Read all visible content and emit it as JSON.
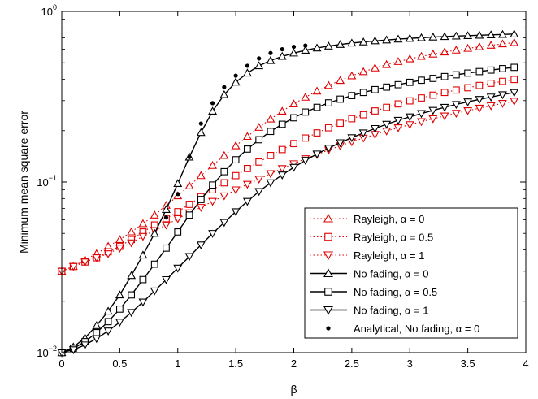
{
  "chart_data": {
    "type": "line",
    "title": "",
    "xlabel": "β",
    "ylabel": "Minimum mean square error",
    "xlim": [
      0,
      4
    ],
    "ylim": [
      0.01,
      1
    ],
    "yscale": "log",
    "xticks": [
      "0",
      "0.5",
      "1",
      "1.5",
      "2",
      "2.5",
      "3",
      "3.5",
      "4"
    ],
    "yticks": [
      {
        "base": "10",
        "exp": "−2",
        "value": 0.01
      },
      {
        "base": "10",
        "exp": "−1",
        "value": 0.1
      },
      {
        "base": "10",
        "exp": "0",
        "value": 1
      }
    ],
    "legend_position": "bottom-right",
    "x": [
      0,
      0.1,
      0.2,
      0.3,
      0.4,
      0.5,
      0.6,
      0.7,
      0.8,
      0.9,
      1.0,
      1.1,
      1.2,
      1.3,
      1.4,
      1.5,
      1.6,
      1.7,
      1.8,
      1.9,
      2.0,
      2.1,
      2.2,
      2.3,
      2.4,
      2.5,
      2.6,
      2.7,
      2.8,
      2.9,
      3.0,
      3.1,
      3.2,
      3.3,
      3.4,
      3.5,
      3.6,
      3.7,
      3.8,
      3.9
    ],
    "series": [
      {
        "name": "Rayleigh, α = 0",
        "color": "#e00000",
        "marker": "triangle-up",
        "line": "dotted",
        "values": [
          0.03,
          0.032,
          0.035,
          0.038,
          0.042,
          0.046,
          0.051,
          0.057,
          0.064,
          0.073,
          0.083,
          0.095,
          0.109,
          0.125,
          0.143,
          0.163,
          0.185,
          0.209,
          0.234,
          0.26,
          0.287,
          0.314,
          0.341,
          0.368,
          0.394,
          0.419,
          0.443,
          0.466,
          0.488,
          0.508,
          0.527,
          0.545,
          0.562,
          0.578,
          0.593,
          0.607,
          0.62,
          0.633,
          0.645,
          0.656
        ]
      },
      {
        "name": "Rayleigh, α = 0.5",
        "color": "#e00000",
        "marker": "square",
        "line": "dotted",
        "values": [
          0.03,
          0.032,
          0.034,
          0.036,
          0.039,
          0.042,
          0.046,
          0.051,
          0.056,
          0.061,
          0.067,
          0.074,
          0.082,
          0.09,
          0.099,
          0.109,
          0.12,
          0.131,
          0.143,
          0.155,
          0.168,
          0.181,
          0.194,
          0.208,
          0.221,
          0.235,
          0.248,
          0.261,
          0.274,
          0.287,
          0.299,
          0.311,
          0.323,
          0.335,
          0.346,
          0.357,
          0.368,
          0.379,
          0.389,
          0.399
        ]
      },
      {
        "name": "Rayleigh, α = 1",
        "color": "#e00000",
        "marker": "triangle-down",
        "line": "dotted",
        "values": [
          0.03,
          0.032,
          0.034,
          0.036,
          0.038,
          0.041,
          0.044,
          0.048,
          0.052,
          0.056,
          0.061,
          0.066,
          0.071,
          0.077,
          0.083,
          0.09,
          0.097,
          0.104,
          0.112,
          0.12,
          0.128,
          0.137,
          0.145,
          0.154,
          0.163,
          0.172,
          0.181,
          0.19,
          0.199,
          0.208,
          0.217,
          0.226,
          0.235,
          0.244,
          0.253,
          0.262,
          0.271,
          0.28,
          0.289,
          0.298
        ]
      },
      {
        "name": "No fading, α = 0",
        "color": "#000000",
        "marker": "triangle-up",
        "line": "solid",
        "values": [
          0.01,
          0.0108,
          0.0122,
          0.0144,
          0.0175,
          0.0218,
          0.0283,
          0.0373,
          0.05,
          0.069,
          0.098,
          0.14,
          0.195,
          0.26,
          0.325,
          0.385,
          0.435,
          0.48,
          0.515,
          0.545,
          0.57,
          0.592,
          0.61,
          0.626,
          0.64,
          0.652,
          0.662,
          0.672,
          0.68,
          0.688,
          0.695,
          0.701,
          0.707,
          0.712,
          0.717,
          0.721,
          0.725,
          0.729,
          0.733,
          0.737
        ]
      },
      {
        "name": "No fading, α = 0.5",
        "color": "#000000",
        "marker": "square",
        "line": "solid",
        "values": [
          0.01,
          0.0106,
          0.0116,
          0.0131,
          0.0152,
          0.018,
          0.0218,
          0.0268,
          0.033,
          0.041,
          0.051,
          0.064,
          0.079,
          0.096,
          0.115,
          0.135,
          0.156,
          0.177,
          0.198,
          0.218,
          0.238,
          0.257,
          0.274,
          0.291,
          0.306,
          0.321,
          0.335,
          0.348,
          0.36,
          0.372,
          0.384,
          0.395,
          0.405,
          0.415,
          0.425,
          0.435,
          0.444,
          0.453,
          0.462,
          0.47
        ]
      },
      {
        "name": "No fading, α = 1",
        "color": "#000000",
        "marker": "triangle-down",
        "line": "solid",
        "values": [
          0.01,
          0.0104,
          0.0111,
          0.0121,
          0.0134,
          0.0151,
          0.0172,
          0.0198,
          0.023,
          0.0268,
          0.0313,
          0.0366,
          0.0428,
          0.05,
          0.058,
          0.067,
          0.077,
          0.088,
          0.099,
          0.11,
          0.122,
          0.134,
          0.146,
          0.158,
          0.17,
          0.182,
          0.194,
          0.206,
          0.218,
          0.23,
          0.241,
          0.252,
          0.263,
          0.274,
          0.285,
          0.295,
          0.305,
          0.315,
          0.325,
          0.335
        ]
      }
    ],
    "analytical": {
      "name": "Analytical, No fading, α = 0",
      "color": "#000000",
      "marker": "dot",
      "x": [
        0.9,
        1.0,
        1.1,
        1.2,
        1.3,
        1.4,
        1.5,
        1.6,
        1.7,
        1.8,
        1.9,
        2.0,
        2.1
      ],
      "values": [
        0.062,
        0.085,
        0.14,
        0.22,
        0.29,
        0.36,
        0.42,
        0.48,
        0.53,
        0.57,
        0.6,
        0.62,
        0.63
      ]
    }
  }
}
